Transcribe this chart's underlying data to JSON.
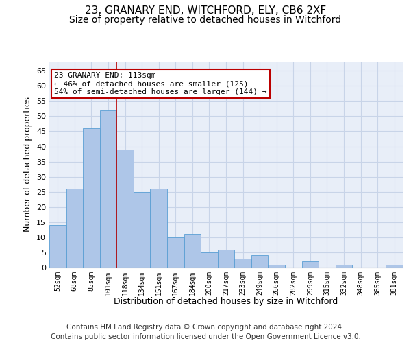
{
  "title1": "23, GRANARY END, WITCHFORD, ELY, CB6 2XF",
  "title2": "Size of property relative to detached houses in Witchford",
  "xlabel": "Distribution of detached houses by size in Witchford",
  "ylabel": "Number of detached properties",
  "footnote1": "Contains HM Land Registry data © Crown copyright and database right 2024.",
  "footnote2": "Contains public sector information licensed under the Open Government Licence v3.0.",
  "bin_labels": [
    "52sqm",
    "68sqm",
    "85sqm",
    "101sqm",
    "118sqm",
    "134sqm",
    "151sqm",
    "167sqm",
    "184sqm",
    "200sqm",
    "217sqm",
    "233sqm",
    "249sqm",
    "266sqm",
    "282sqm",
    "299sqm",
    "315sqm",
    "332sqm",
    "348sqm",
    "365sqm",
    "381sqm"
  ],
  "bar_values": [
    14,
    26,
    46,
    52,
    39,
    25,
    26,
    10,
    11,
    5,
    6,
    3,
    4,
    1,
    0,
    2,
    0,
    1,
    0,
    0,
    1
  ],
  "bar_color": "#aec6e8",
  "bar_edge_color": "#5a9fd4",
  "vline_x": 4,
  "vline_color": "#bb0000",
  "annotation_text": "23 GRANARY END: 113sqm\n← 46% of detached houses are smaller (125)\n54% of semi-detached houses are larger (144) →",
  "annotation_box_color": "white",
  "annotation_box_edge": "#bb0000",
  "ylim": [
    0,
    68
  ],
  "yticks": [
    0,
    5,
    10,
    15,
    20,
    25,
    30,
    35,
    40,
    45,
    50,
    55,
    60,
    65
  ],
  "grid_color": "#c8d4e8",
  "background_color": "#e8eef8",
  "title1_fontsize": 11,
  "title2_fontsize": 10,
  "xlabel_fontsize": 9,
  "ylabel_fontsize": 9,
  "footnote_fontsize": 7.5
}
